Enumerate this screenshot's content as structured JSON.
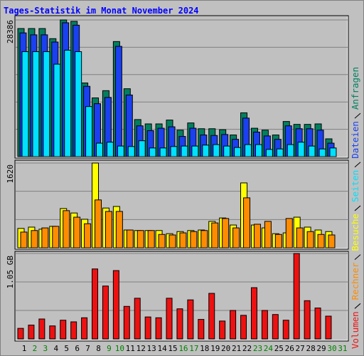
{
  "chart_data": [
    {
      "type": "bar",
      "title": "Tages-Statistik im Monat November 2024",
      "ylim": [
        0,
        28386
      ],
      "yticks": [
        28386
      ],
      "series": [
        {
          "name": "Anfragen",
          "color": "#008060",
          "values": [
            26600,
            26600,
            26600,
            24500,
            28386,
            28100,
            15300,
            12200,
            13700,
            23900,
            14100,
            7700,
            6800,
            6800,
            7600,
            5500,
            7000,
            5800,
            5800,
            5600,
            4500,
            9100,
            5900,
            5500,
            4500,
            7300,
            6700,
            6700,
            6800,
            3700,
            null
          ]
        },
        {
          "name": "Dateien",
          "color": "#1a40f0",
          "values": [
            25700,
            25300,
            25300,
            23800,
            27800,
            27300,
            14600,
            11000,
            12300,
            22900,
            12800,
            6400,
            5400,
            5900,
            6200,
            4200,
            5900,
            4500,
            4400,
            4600,
            3600,
            8000,
            5100,
            4300,
            3600,
            6400,
            5800,
            5800,
            5500,
            2800,
            null
          ]
        },
        {
          "name": "Seiten",
          "color": "#00e0ff",
          "values": [
            21800,
            21800,
            21800,
            19200,
            22100,
            21800,
            10400,
            2800,
            3000,
            2200,
            2100,
            3300,
            1800,
            1800,
            2100,
            2200,
            2200,
            2400,
            2500,
            2200,
            1900,
            2500,
            2500,
            1500,
            1600,
            2500,
            3000,
            2200,
            1600,
            1800,
            null
          ]
        }
      ]
    },
    {
      "type": "bar",
      "ylim": [
        0,
        1620
      ],
      "yticks": [
        1620
      ],
      "series": [
        {
          "name": "Besuche",
          "color": "#ffff00",
          "values": [
            370,
            395,
            355,
            410,
            750,
            665,
            545,
            1620,
            760,
            790,
            340,
            330,
            330,
            330,
            270,
            310,
            330,
            340,
            505,
            570,
            435,
            1240,
            435,
            380,
            270,
            285,
            585,
            395,
            340,
            310,
            null
          ]
        },
        {
          "name": "Rechner",
          "color": "#ff8c00",
          "values": [
            300,
            330,
            380,
            410,
            710,
            585,
            460,
            915,
            695,
            695,
            340,
            330,
            330,
            255,
            245,
            285,
            310,
            330,
            475,
            560,
            380,
            955,
            450,
            505,
            255,
            560,
            380,
            310,
            255,
            245,
            null
          ]
        }
      ]
    },
    {
      "type": "bar",
      "ylim": [
        0,
        1.05
      ],
      "yticks": [
        {
          "value": 1.05,
          "label": "1.05 GB"
        }
      ],
      "categories": [
        "1",
        "2",
        "3",
        "4",
        "5",
        "6",
        "7",
        "8",
        "9",
        "10",
        "11",
        "12",
        "13",
        "14",
        "15",
        "16",
        "17",
        "18",
        "19",
        "20",
        "21",
        "22",
        "23",
        "24",
        "25",
        "26",
        "27",
        "28",
        "29",
        "30",
        "31"
      ],
      "category_colors": [
        "#000000",
        "#008000",
        "#008000",
        "#000000",
        "#000000",
        "#000000",
        "#000000",
        "#000000",
        "#008000",
        "#008000",
        "#000000",
        "#000000",
        "#000000",
        "#000000",
        "#000000",
        "#008000",
        "#008000",
        "#000000",
        "#000000",
        "#000000",
        "#000000",
        "#000000",
        "#008000",
        "#008000",
        "#000000",
        "#000000",
        "#000000",
        "#000000",
        "#000000",
        "#008000",
        "#008000"
      ],
      "series": [
        {
          "name": "Volumen",
          "color": "#ee1111",
          "values": [
            0.13,
            0.17,
            0.245,
            0.16,
            0.23,
            0.21,
            0.26,
            0.86,
            0.65,
            0.84,
            0.4,
            0.5,
            0.27,
            0.26,
            0.5,
            0.37,
            0.48,
            0.24,
            0.56,
            0.22,
            0.35,
            0.29,
            0.63,
            0.35,
            0.3,
            0.23,
            1.05,
            0.47,
            0.38,
            0.28,
            null
          ]
        }
      ]
    }
  ]
}
